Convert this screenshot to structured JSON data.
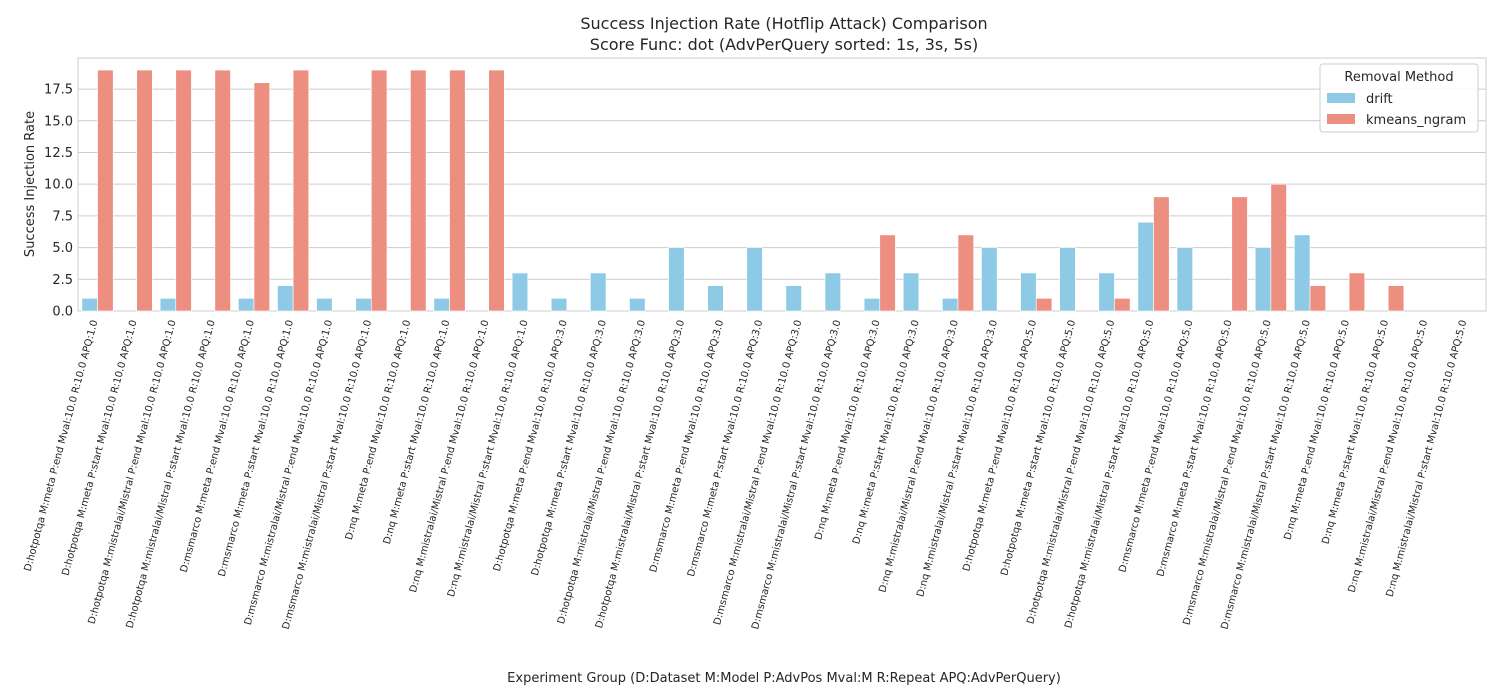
{
  "chart_data": {
    "type": "bar",
    "title": "Success Injection Rate (Hotflip Attack) Comparison",
    "subtitle": "Score Func: dot (AdvPerQuery sorted: 1s, 3s, 5s)",
    "xlabel": "Experiment Group (D:Dataset M:Model P:AdvPos Mval:M R:Repeat APQ:AdvPerQuery)",
    "ylabel": "Success Injection Rate",
    "ylim": [
      0,
      19.95
    ],
    "yticks": [
      "0.0",
      "2.5",
      "5.0",
      "7.5",
      "10.0",
      "12.5",
      "15.0",
      "17.5"
    ],
    "grid": true,
    "legend": {
      "title": "Removal Method",
      "placement": "top-right"
    },
    "categories": [
      "D:hotpotqa M:meta P:end Mval:10.0 R:10.0 APQ:1.0",
      "D:hotpotqa M:meta P:start Mval:10.0 R:10.0 APQ:1.0",
      "D:hotpotqa M:mistralai/Mistral P:end Mval:10.0 R:10.0 APQ:1.0",
      "D:hotpotqa M:mistralai/Mistral P:start Mval:10.0 R:10.0 APQ:1.0",
      "D:msmarco M:meta P:end Mval:10.0 R:10.0 APQ:1.0",
      "D:msmarco M:meta P:start Mval:10.0 R:10.0 APQ:1.0",
      "D:msmarco M:mistralai/Mistral P:end Mval:10.0 R:10.0 APQ:1.0",
      "D:msmarco M:mistralai/Mistral P:start Mval:10.0 R:10.0 APQ:1.0",
      "D:nq M:meta P:end Mval:10.0 R:10.0 APQ:1.0",
      "D:nq M:meta P:start Mval:10.0 R:10.0 APQ:1.0",
      "D:nq M:mistralai/Mistral P:end Mval:10.0 R:10.0 APQ:1.0",
      "D:nq M:mistralai/Mistral P:start Mval:10.0 R:10.0 APQ:1.0",
      "D:hotpotqa M:meta P:end Mval:10.0 R:10.0 APQ:3.0",
      "D:hotpotqa M:meta P:start Mval:10.0 R:10.0 APQ:3.0",
      "D:hotpotqa M:mistralai/Mistral P:end Mval:10.0 R:10.0 APQ:3.0",
      "D:hotpotqa M:mistralai/Mistral P:start Mval:10.0 R:10.0 APQ:3.0",
      "D:msmarco M:meta P:end Mval:10.0 R:10.0 APQ:3.0",
      "D:msmarco M:meta P:start Mval:10.0 R:10.0 APQ:3.0",
      "D:msmarco M:mistralai/Mistral P:end Mval:10.0 R:10.0 APQ:3.0",
      "D:msmarco M:mistralai/Mistral P:start Mval:10.0 R:10.0 APQ:3.0",
      "D:nq M:meta P:end Mval:10.0 R:10.0 APQ:3.0",
      "D:nq M:meta P:start Mval:10.0 R:10.0 APQ:3.0",
      "D:nq M:mistralai/Mistral P:end Mval:10.0 R:10.0 APQ:3.0",
      "D:nq M:mistralai/Mistral P:start Mval:10.0 R:10.0 APQ:3.0",
      "D:hotpotqa M:meta P:end Mval:10.0 R:10.0 APQ:5.0",
      "D:hotpotqa M:meta P:start Mval:10.0 R:10.0 APQ:5.0",
      "D:hotpotqa M:mistralai/Mistral P:end Mval:10.0 R:10.0 APQ:5.0",
      "D:hotpotqa M:mistralai/Mistral P:start Mval:10.0 R:10.0 APQ:5.0",
      "D:msmarco M:meta P:end Mval:10.0 R:10.0 APQ:5.0",
      "D:msmarco M:meta P:start Mval:10.0 R:10.0 APQ:5.0",
      "D:msmarco M:mistralai/Mistral P:end Mval:10.0 R:10.0 APQ:5.0",
      "D:msmarco M:mistralai/Mistral P:start Mval:10.0 R:10.0 APQ:5.0",
      "D:nq M:meta P:end Mval:10.0 R:10.0 APQ:5.0",
      "D:nq M:meta P:start Mval:10.0 R:10.0 APQ:5.0",
      "D:nq M:mistralai/Mistral P:end Mval:10.0 R:10.0 APQ:5.0",
      "D:nq M:mistralai/Mistral P:start Mval:10.0 R:10.0 APQ:5.0"
    ],
    "series": [
      {
        "name": "drift",
        "color": "#8ecae6",
        "values": [
          1,
          0,
          1,
          0,
          1,
          2,
          1,
          1,
          0,
          1,
          0,
          3,
          1,
          3,
          1,
          5,
          2,
          5,
          2,
          3,
          1,
          3,
          1,
          5,
          3,
          5,
          3,
          7,
          5,
          0,
          5,
          6,
          0,
          0,
          0,
          0
        ]
      },
      {
        "name": "kmeans_ngram",
        "color": "#ec8f81",
        "values": [
          19,
          19,
          19,
          19,
          18,
          19,
          0,
          19,
          19,
          19,
          19,
          0,
          0,
          0,
          0,
          0,
          0,
          0,
          0,
          0,
          6,
          0,
          6,
          0,
          1,
          0,
          1,
          9,
          0,
          9,
          10,
          2,
          3,
          2,
          0,
          0
        ]
      }
    ]
  }
}
